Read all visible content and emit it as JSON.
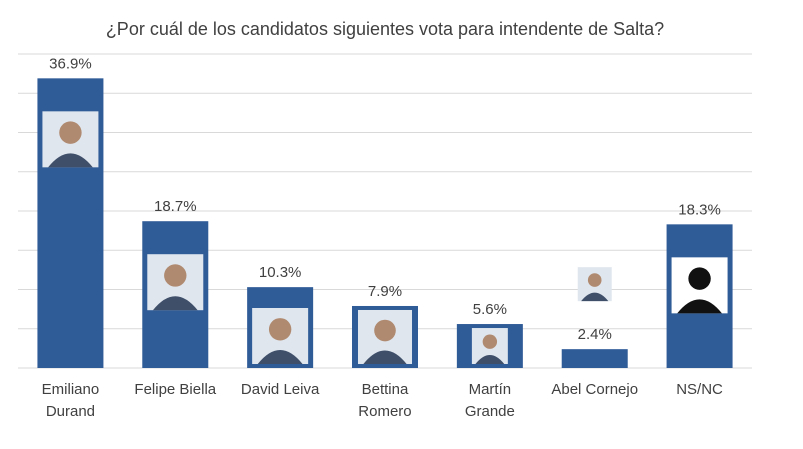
{
  "chart_data": {
    "type": "bar",
    "title": "¿Por cuál de los candidatos siguientes vota para intendente de Salta?",
    "categories": [
      "Emiliano\nDurand",
      "Felipe Biella",
      "David Leiva",
      "Bettina\nRomero",
      "Martín\nGrande",
      "Abel Cornejo",
      "NS/NC"
    ],
    "values": [
      36.9,
      18.7,
      10.3,
      7.9,
      5.6,
      2.4,
      18.3
    ],
    "value_labels": [
      "36.9%",
      "18.7%",
      "10.3%",
      "7.9%",
      "5.6%",
      "2.4%",
      "18.3%"
    ],
    "color": "#2f5b97",
    "ylim": [
      0,
      40
    ],
    "yticks": [
      0,
      5,
      10,
      15,
      20,
      25,
      30,
      35,
      40
    ],
    "grid": true
  }
}
